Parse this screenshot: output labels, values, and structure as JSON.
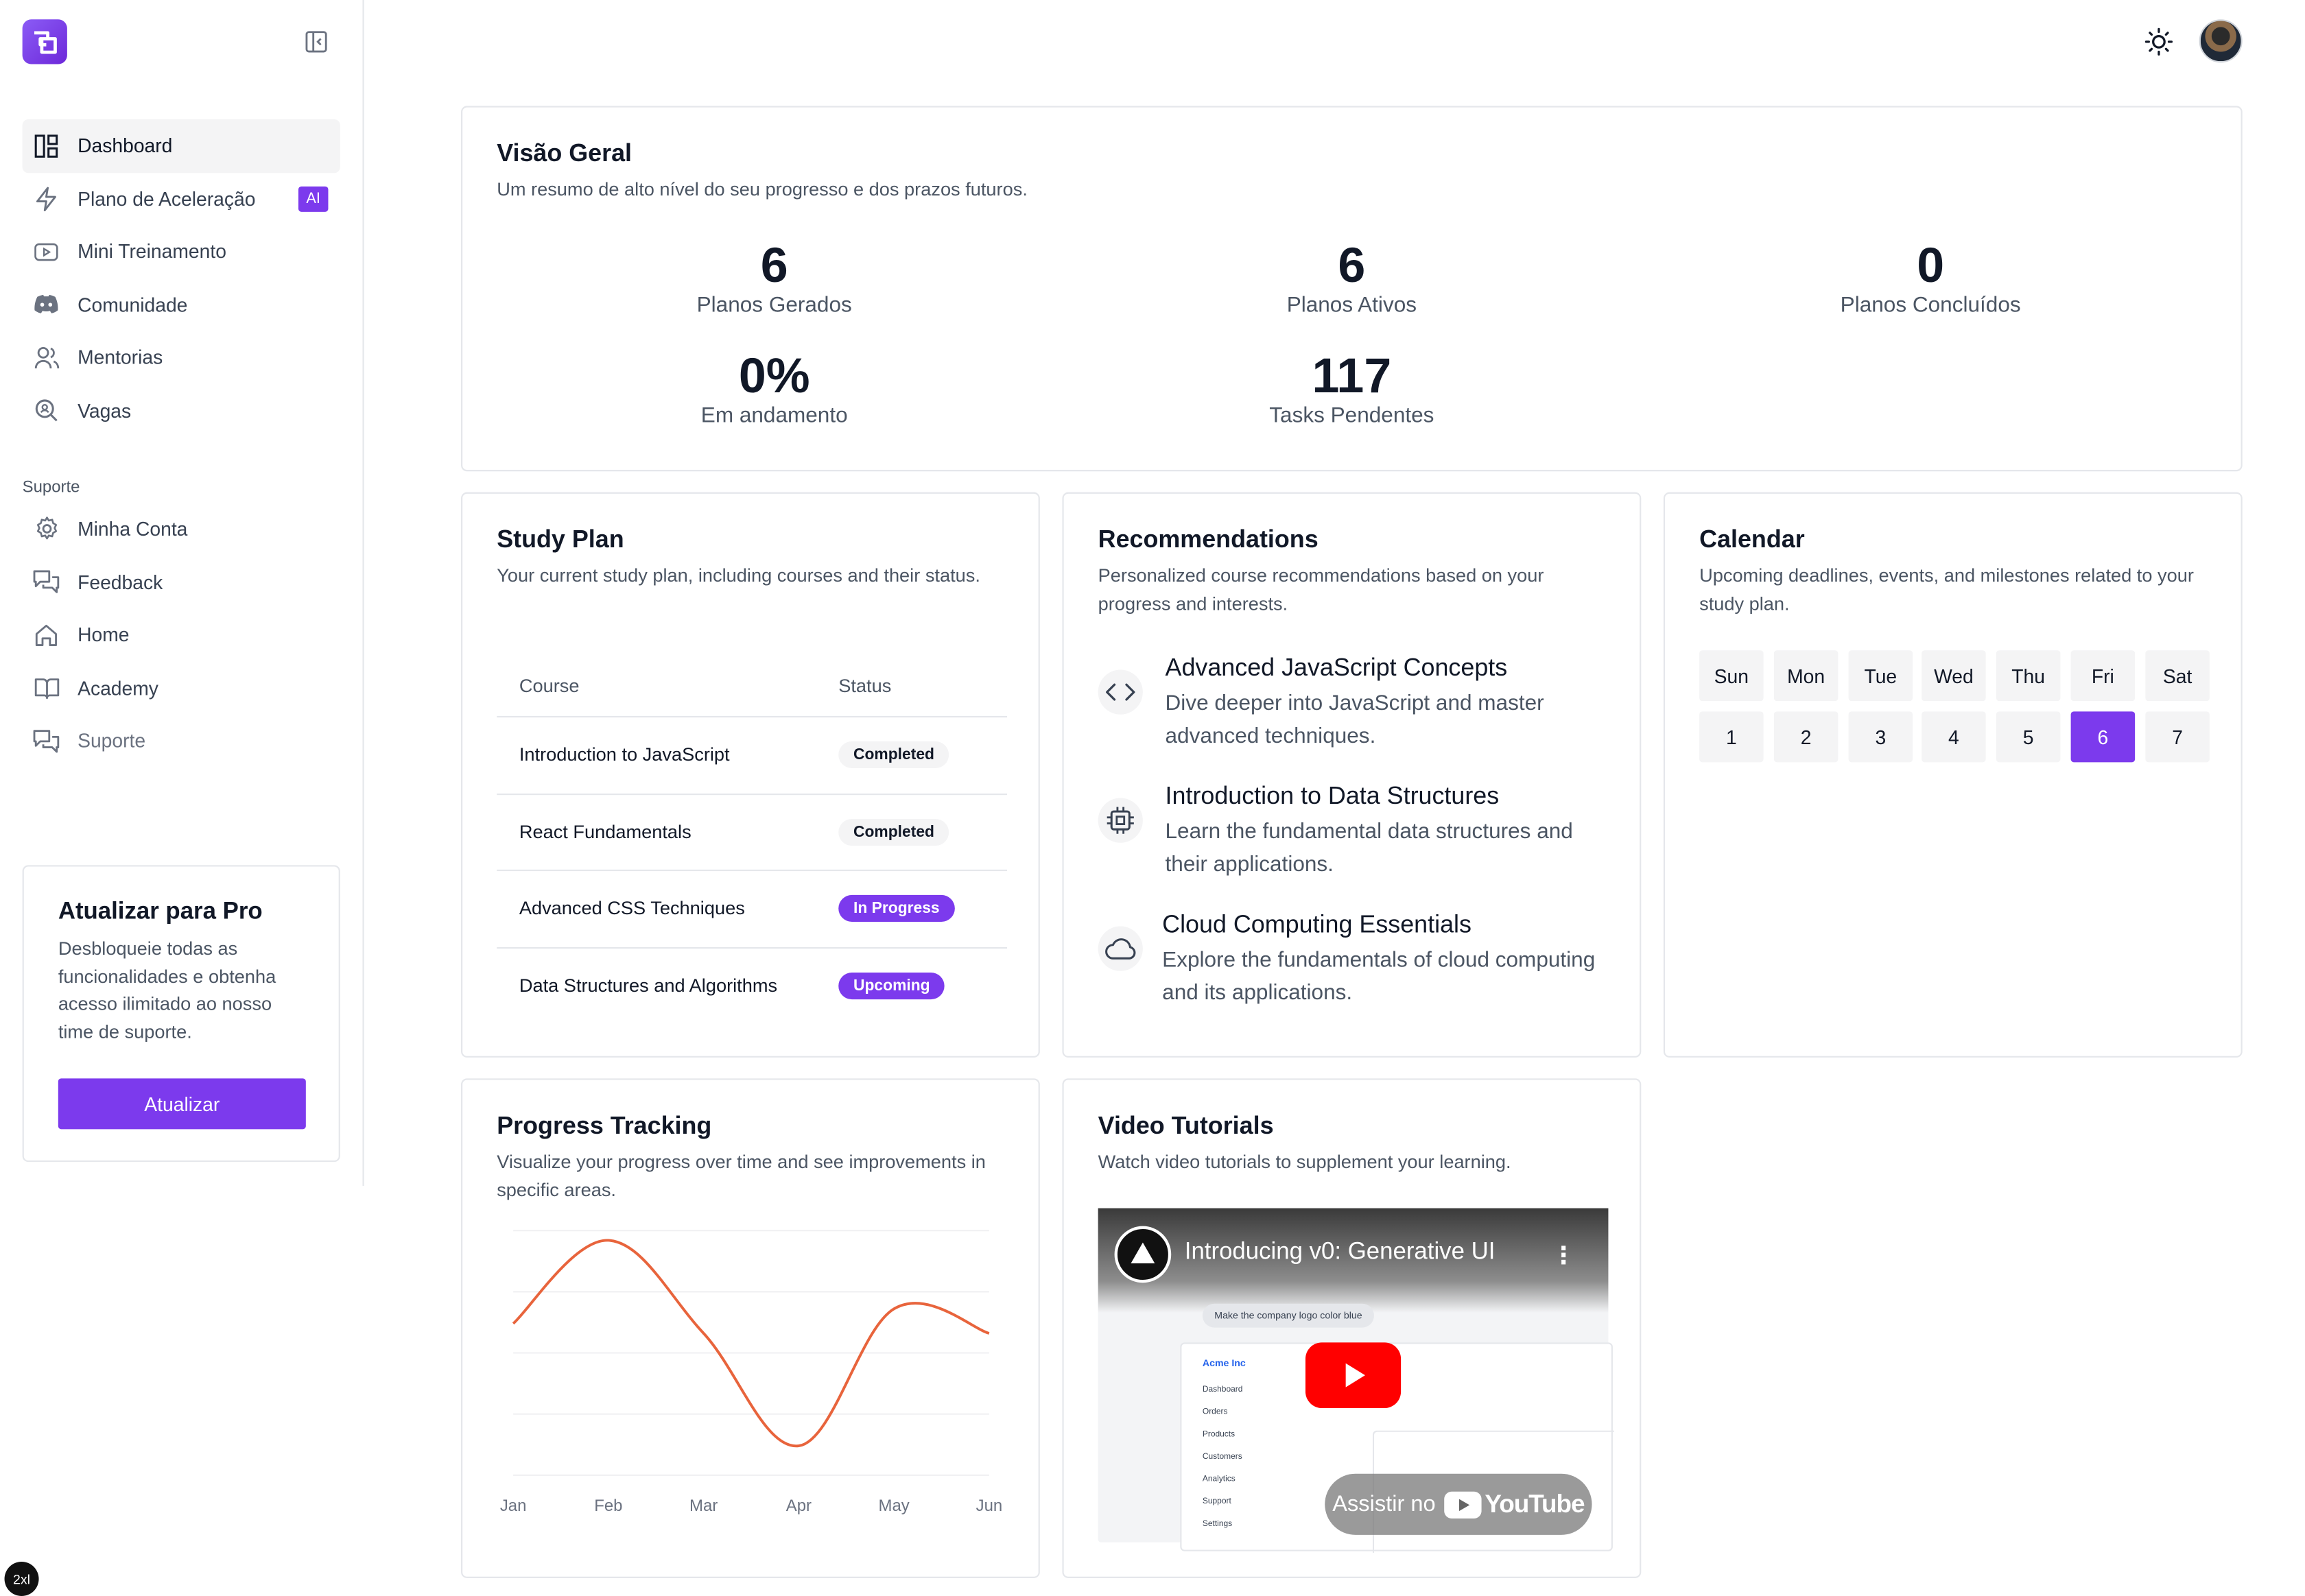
{
  "sidebar": {
    "logo_icon": "app-logo",
    "collapse_icon": "panel-left-close-icon",
    "items": [
      {
        "label": "Dashboard",
        "icon": "dashboard-icon",
        "active": true
      },
      {
        "label": "Plano de Aceleração",
        "icon": "zap-icon",
        "badge": "AI"
      },
      {
        "label": "Mini Treinamento",
        "icon": "play-icon"
      },
      {
        "label": "Comunidade",
        "icon": "discord-icon"
      },
      {
        "label": "Mentorias",
        "icon": "users-icon"
      },
      {
        "label": "Vagas",
        "icon": "search-icon"
      }
    ],
    "support_label": "Suporte",
    "support_items": [
      {
        "label": "Minha Conta",
        "icon": "gear-icon"
      },
      {
        "label": "Feedback",
        "icon": "messages-icon"
      },
      {
        "label": "Home",
        "icon": "home-icon"
      },
      {
        "label": "Academy",
        "icon": "book-icon"
      },
      {
        "label": "Suporte",
        "icon": "messages-icon"
      }
    ],
    "pro": {
      "title": "Atualizar para Pro",
      "description": "Desbloqueie todas as funcionalidades e obtenha acesso ilimitado ao nosso time de suporte.",
      "button": "Atualizar"
    }
  },
  "topbar": {
    "theme_icon": "sun-icon",
    "avatar_icon": "user-avatar"
  },
  "overview": {
    "title": "Visão Geral",
    "description": "Um resumo de alto nível do seu progresso e dos prazos futuros.",
    "stats": [
      {
        "value": "6",
        "label": "Planos Gerados"
      },
      {
        "value": "6",
        "label": "Planos Ativos"
      },
      {
        "value": "0",
        "label": "Planos Concluídos"
      },
      {
        "value": "0%",
        "label": "Em andamento"
      },
      {
        "value": "117",
        "label": "Tasks Pendentes"
      }
    ]
  },
  "study_plan": {
    "title": "Study Plan",
    "description": "Your current study plan, including courses and their status.",
    "columns": [
      "Course",
      "Status"
    ],
    "rows": [
      {
        "course": "Introduction to JavaScript",
        "status": "Completed"
      },
      {
        "course": "React Fundamentals",
        "status": "Completed"
      },
      {
        "course": "Advanced CSS Techniques",
        "status": "In Progress"
      },
      {
        "course": "Data Structures and Algorithms",
        "status": "Upcoming"
      }
    ]
  },
  "recommendations": {
    "title": "Recommendations",
    "description": "Personalized course recommendations based on your progress and interests.",
    "items": [
      {
        "title": "Advanced JavaScript Concepts",
        "description": "Dive deeper into JavaScript and master advanced techniques.",
        "icon": "code-icon"
      },
      {
        "title": "Introduction to Data Structures",
        "description": "Learn the fundamental data structures and their applications.",
        "icon": "cpu-icon"
      },
      {
        "title": "Cloud Computing Essentials",
        "description": "Explore the fundamentals of cloud computing and its applications.",
        "icon": "cloud-icon"
      }
    ]
  },
  "calendar": {
    "title": "Calendar",
    "description": "Upcoming deadlines, events, and milestones related to your study plan.",
    "weekdays": [
      "Sun",
      "Mon",
      "Tue",
      "Wed",
      "Thu",
      "Fri",
      "Sat"
    ],
    "days": [
      "1",
      "2",
      "3",
      "4",
      "5",
      "6",
      "7"
    ],
    "selected": "6"
  },
  "progress": {
    "title": "Progress Tracking",
    "description": "Visualize your progress over time and see improvements in specific areas.",
    "chart_data": {
      "type": "line",
      "categories": [
        "Jan",
        "Feb",
        "Mar",
        "Apr",
        "May",
        "Jun"
      ],
      "values": [
        62,
        96,
        58,
        12,
        68,
        58
      ],
      "ylim": [
        0,
        100
      ],
      "grid": true,
      "line_color": "#e8643c"
    }
  },
  "videos": {
    "title": "Video Tutorials",
    "description": "Watch video tutorials to supplement your learning.",
    "video_title": "Introducing v0: Generative UI",
    "chip": "Make the company logo color blue",
    "app_brand": "Acme Inc",
    "app_links": [
      "Dashboard",
      "Orders",
      "Products",
      "Customers",
      "Analytics",
      "Support",
      "Settings"
    ],
    "watch_on": "Assistir no",
    "youtube": "YouTube"
  },
  "corner_badge": "2xl"
}
